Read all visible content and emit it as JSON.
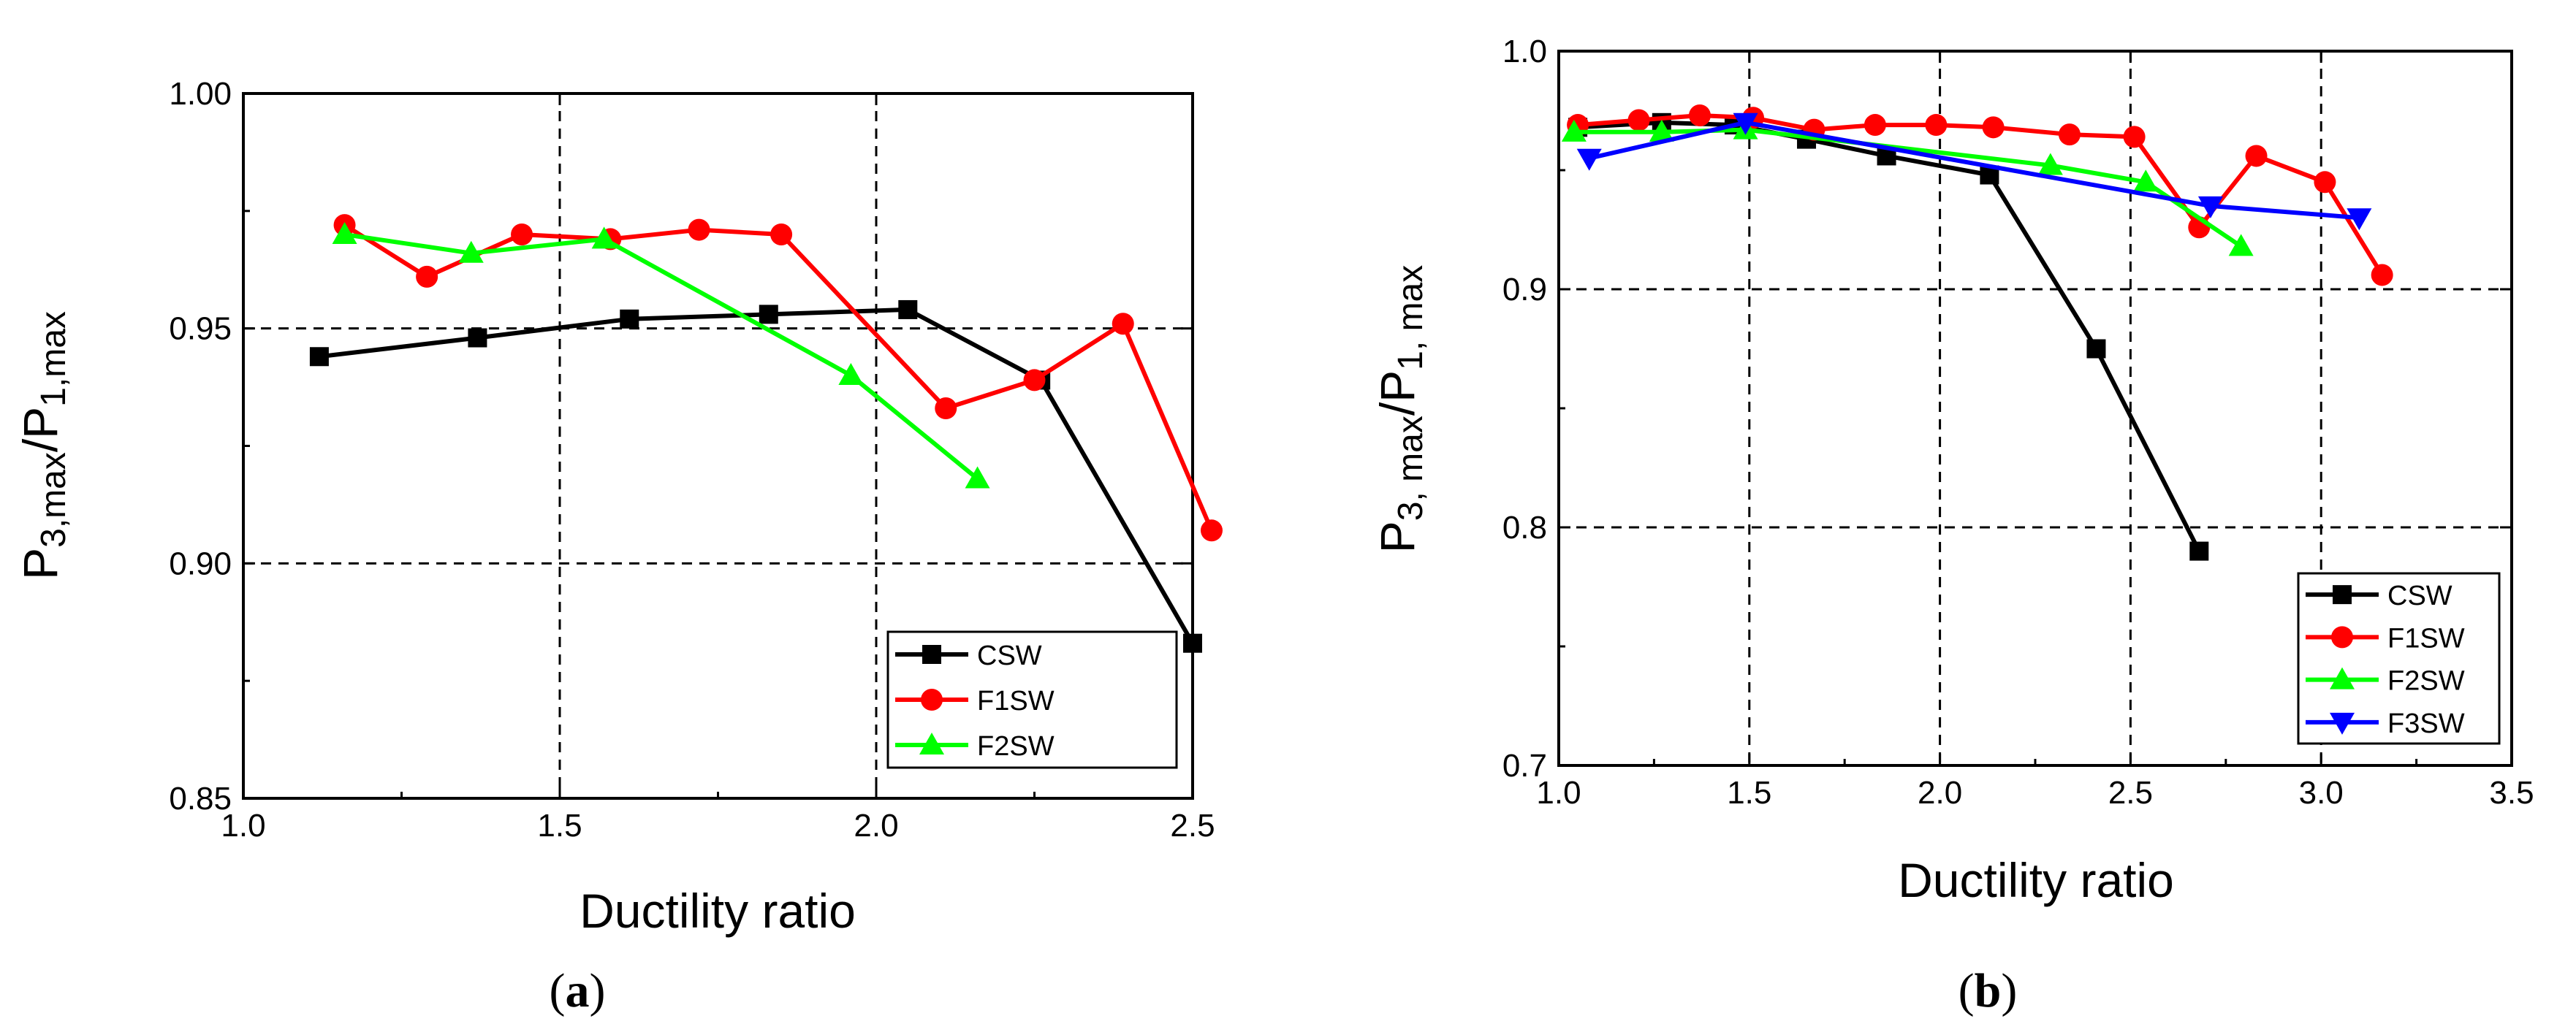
{
  "chart_data": [
    {
      "type": "line",
      "caption_open": "(",
      "caption_letter": "a",
      "caption_close": ")",
      "xlabel": "Ductility ratio",
      "ylabel_main": "P",
      "ylabel_sub1": "3,max",
      "ylabel_mid": "/P",
      "ylabel_sub2": "1,max",
      "xlim": [
        1.0,
        2.5
      ],
      "ylim": [
        0.85,
        1.0
      ],
      "xticks": [
        "1.0",
        "1.5",
        "2.0",
        "2.5"
      ],
      "yticks": [
        "0.85",
        "0.90",
        "0.95",
        "1.00"
      ],
      "grid": "dashed",
      "legend_position": "bottom-right",
      "colors": {
        "CSW": "#000000",
        "F1SW": "#ff0000",
        "F2SW": "#00ff00"
      },
      "series": [
        {
          "name": "CSW",
          "marker": "square",
          "x": [
            1.12,
            1.37,
            1.61,
            1.83,
            2.05,
            2.26,
            2.5
          ],
          "y": [
            0.944,
            0.948,
            0.952,
            0.953,
            0.954,
            0.939,
            0.883
          ]
        },
        {
          "name": "F1SW",
          "marker": "circle",
          "x": [
            1.16,
            1.29,
            1.44,
            1.58,
            1.72,
            1.85,
            2.11,
            2.25,
            2.39,
            2.53
          ],
          "y": [
            0.972,
            0.961,
            0.97,
            0.969,
            0.971,
            0.97,
            0.933,
            0.939,
            0.951,
            0.907
          ]
        },
        {
          "name": "F2SW",
          "marker": "triangle-up",
          "x": [
            1.16,
            1.36,
            1.57,
            1.96,
            2.16
          ],
          "y": [
            0.97,
            0.966,
            0.969,
            0.94,
            0.918
          ]
        }
      ]
    },
    {
      "type": "line",
      "caption_open": "(",
      "caption_letter": "b",
      "caption_close": ")",
      "xlabel": "Ductility ratio",
      "ylabel_main": "P",
      "ylabel_sub1": "3,  max",
      "ylabel_mid": "/P",
      "ylabel_sub2": "1,  max",
      "xlim": [
        1.0,
        3.5
      ],
      "ylim": [
        0.7,
        1.0
      ],
      "xticks": [
        "1.0",
        "1.5",
        "2.0",
        "2.5",
        "3.0",
        "3.5"
      ],
      "yticks": [
        "0.7",
        "0.8",
        "0.9",
        "1.0"
      ],
      "grid": "dashed",
      "legend_position": "bottom-right",
      "colors": {
        "CSW": "#000000",
        "F1SW": "#ff0000",
        "F2SW": "#00ff00",
        "F3SW": "#0000ff"
      },
      "series": [
        {
          "name": "CSW",
          "marker": "square",
          "x": [
            1.05,
            1.27,
            1.46,
            1.65,
            1.86,
            2.13,
            2.41,
            2.68
          ],
          "y": [
            0.968,
            0.97,
            0.969,
            0.963,
            0.956,
            0.948,
            0.875,
            0.79
          ]
        },
        {
          "name": "F1SW",
          "marker": "circle",
          "x": [
            1.05,
            1.21,
            1.37,
            1.51,
            1.67,
            1.83,
            1.99,
            2.14,
            2.34,
            2.51,
            2.68,
            2.83,
            3.01,
            3.16
          ],
          "y": [
            0.969,
            0.971,
            0.973,
            0.972,
            0.967,
            0.969,
            0.969,
            0.968,
            0.965,
            0.964,
            0.926,
            0.956,
            0.945,
            0.906
          ]
        },
        {
          "name": "F2SW",
          "marker": "triangle-up",
          "x": [
            1.04,
            1.27,
            1.49,
            2.29,
            2.54,
            2.79
          ],
          "y": [
            0.966,
            0.966,
            0.967,
            0.952,
            0.945,
            0.918
          ]
        },
        {
          "name": "F3SW",
          "marker": "triangle-down",
          "x": [
            1.08,
            1.49,
            2.71,
            3.1
          ],
          "y": [
            0.955,
            0.97,
            0.935,
            0.93
          ]
        }
      ]
    }
  ]
}
